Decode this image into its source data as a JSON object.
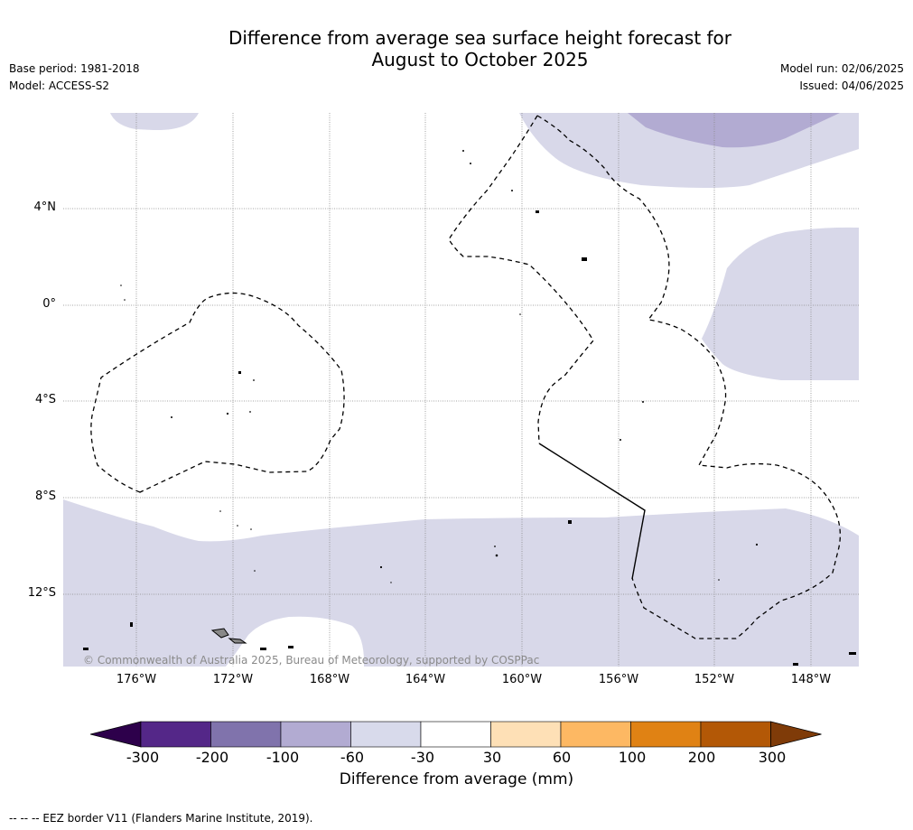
{
  "header": {
    "title_line1": "Difference from average sea surface height forecast for",
    "title_line2": "August to October 2025",
    "base_period": "Base period: 1981-2018",
    "model": "Model: ACCESS-S2",
    "model_run": "Model run: 02/06/2025",
    "issued": "Issued: 04/06/2025"
  },
  "map": {
    "copyright": "© Commonwealth of Australia 2025, Bureau of Meteorology, supported by COSPPac",
    "lat_ticks": [
      "4°N",
      "0°",
      "4°S",
      "8°S",
      "12°S"
    ],
    "lon_ticks": [
      "176°W",
      "172°W",
      "168°W",
      "164°W",
      "160°W",
      "156°W",
      "152°W",
      "148°W"
    ],
    "colors": {
      "-60_-30": "#d8d8e9",
      "-100_-60": "#b2abd2",
      "land": "#888888",
      "eez_border": "#000000"
    }
  },
  "colorbar": {
    "title": "Difference from average (mm)",
    "labels": [
      "-300",
      "-200",
      "-100",
      "-60",
      "-30",
      "30",
      "60",
      "100",
      "200",
      "300"
    ],
    "colors": [
      "#2d004b",
      "#542788",
      "#8073ac",
      "#b2abd2",
      "#d8daeb",
      "#ffffff",
      "#fee0b6",
      "#fdb863",
      "#e08214",
      "#b35806",
      "#7f3b08"
    ]
  },
  "footnote": "--  --  -- EEZ border V11 (Flanders Marine Institute, 2019)."
}
